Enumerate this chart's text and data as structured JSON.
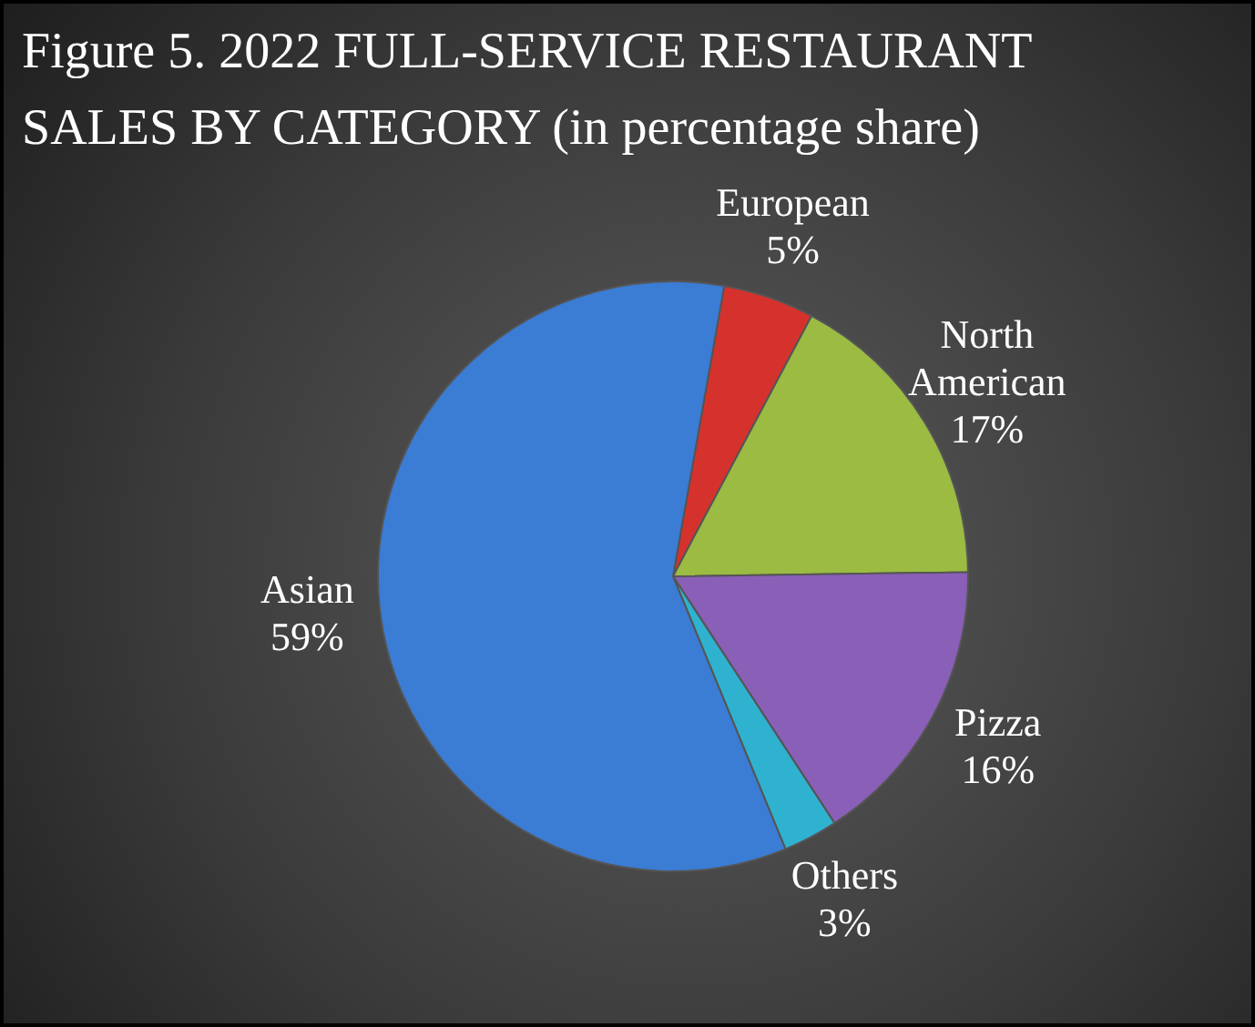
{
  "chart_data": {
    "type": "pie",
    "title": "Figure 5. 2022 FULL-SERVICE RESTAURANT SALES BY CATEGORY (in percentage share)",
    "categories": [
      "European",
      "North American",
      "Pizza",
      "Others",
      "Asian"
    ],
    "values": [
      5,
      17,
      16,
      3,
      59
    ],
    "value_labels": [
      "5%",
      "17%",
      "16%",
      "3%",
      "59%"
    ],
    "colors": [
      "#d6322d",
      "#9bbb43",
      "#8a5fb8",
      "#2fb2cf",
      "#3b7cd4"
    ],
    "legend": false
  }
}
